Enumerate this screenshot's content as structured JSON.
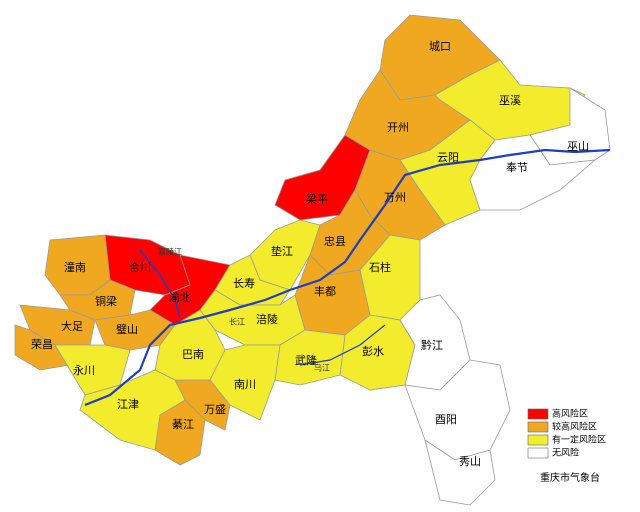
{
  "legend": [
    {
      "label": "高风险区",
      "color": "#ff0000",
      "regions": [
        "梁平",
        "合川",
        "渝北"
      ]
    },
    {
      "label": "较高风险区",
      "color": "#f0a820",
      "regions": [
        "城口",
        "开州",
        "万州",
        "忠县",
        "丰都",
        "潼南",
        "铜梁",
        "大足",
        "荣昌",
        "璧山",
        "万盛",
        "綦江"
      ]
    },
    {
      "label": "有一定风险区",
      "color": "#f2ec2c",
      "regions": [
        "巫溪",
        "云阳",
        "垫江",
        "石柱",
        "长寿",
        "涪陵",
        "永川",
        "巴南",
        "彭水",
        "武隆",
        "南川",
        "江津"
      ]
    },
    {
      "label": "无风险",
      "color": "#ffffff",
      "regions": [
        "巫山",
        "奉节",
        "黔江",
        "酉阳",
        "秀山"
      ]
    }
  ],
  "rivers": [
    "长江",
    "乌江",
    "嘉陵江"
  ],
  "credit": "重庆市气象台"
}
